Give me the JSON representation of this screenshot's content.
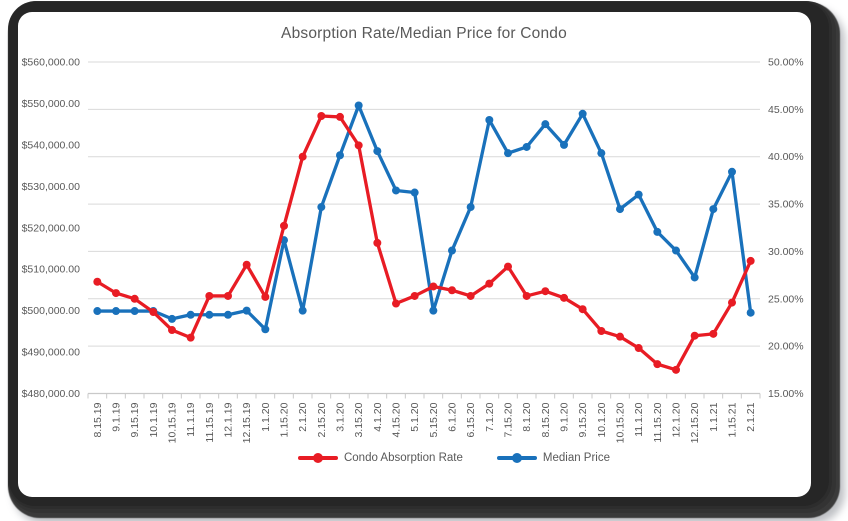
{
  "frame": {
    "bezel_color": "#262626",
    "chart_background": "#ffffff"
  },
  "chart_data": {
    "type": "line",
    "title": "Absorption Rate/Median Price for Condo",
    "text_color": "#595959",
    "grid": {
      "horizontal": true,
      "color": "#d9d9d9",
      "axis_line_color": "#c9c9c9"
    },
    "legend_position": "bottom",
    "categories": [
      "8.15.19",
      "9.1.19",
      "9.15.19",
      "10.1.19",
      "10.15.19",
      "11.1.19",
      "11.15.19",
      "12.1.19",
      "12.15.19",
      "1.1.20",
      "1.15.20",
      "2.1.20",
      "2.15.20",
      "3.1.20",
      "3.15.20",
      "4.1.20",
      "4.15.20",
      "5.1.20",
      "5.15.20",
      "6.1.20",
      "6.15.20",
      "7.1.20",
      "7.15.20",
      "8.1.20",
      "8.15.20",
      "9.1.20",
      "9.15.20",
      "10.1.20",
      "10.15.20",
      "11.1.20",
      "11.15.20",
      "12.1.20",
      "12.15.20",
      "1.1.21",
      "1.15.21",
      "2.1.21"
    ],
    "series": [
      {
        "name": "Condo Absorption Rate",
        "color": "#e81c24",
        "axis": "right",
        "unit": "%",
        "values": [
          26.8,
          25.6,
          25.0,
          23.6,
          21.7,
          20.9,
          25.3,
          25.3,
          28.6,
          25.2,
          32.7,
          40.0,
          44.3,
          44.2,
          41.2,
          30.9,
          24.5,
          25.3,
          26.3,
          25.9,
          25.3,
          26.6,
          28.4,
          25.3,
          25.8,
          25.1,
          23.9,
          21.6,
          21.0,
          19.8,
          18.1,
          17.5,
          21.1,
          21.3,
          24.6,
          29.0
        ]
      },
      {
        "name": "Median Price",
        "color": "#1971bb",
        "axis": "left",
        "unit": "$",
        "values": [
          499900,
          499900,
          499900,
          499900,
          498000,
          499000,
          499000,
          499000,
          500000,
          495500,
          517000,
          500000,
          525000,
          537500,
          549500,
          538500,
          529000,
          528500,
          500000,
          514500,
          525000,
          546000,
          538000,
          539500,
          545000,
          540000,
          547500,
          538000,
          524500,
          528000,
          519000,
          514500,
          508000,
          524500,
          533500,
          499500
        ]
      }
    ],
    "left_axis": {
      "min": 480000,
      "max": 560000,
      "step": 10000,
      "tick_labels": [
        "$480,000.00",
        "$490,000.00",
        "$500,000.00",
        "$510,000.00",
        "$520,000.00",
        "$530,000.00",
        "$540,000.00",
        "$550,000.00",
        "$560,000.00"
      ]
    },
    "right_axis": {
      "min": 15,
      "max": 50,
      "step": 5,
      "tick_labels": [
        "15.00%",
        "20.00%",
        "25.00%",
        "30.00%",
        "35.00%",
        "40.00%",
        "45.00%",
        "50.00%"
      ]
    },
    "legend": {
      "entries": [
        "Condo Absorption Rate",
        "Median Price"
      ]
    }
  }
}
